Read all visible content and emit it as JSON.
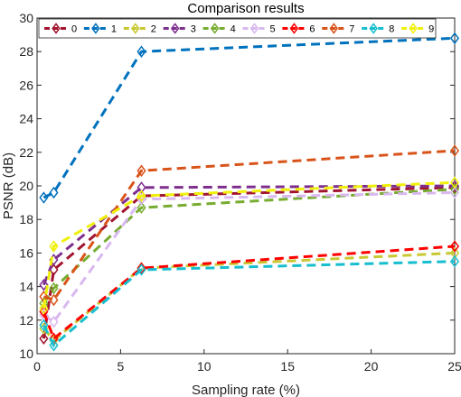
{
  "chart_data": {
    "type": "line",
    "title": "Comparison results",
    "xlabel": "Sampling rate (%)",
    "ylabel": "PSNR (dB)",
    "xlim": [
      0,
      25
    ],
    "ylim": [
      10,
      30
    ],
    "xticks": [
      0,
      5,
      10,
      15,
      20,
      25
    ],
    "yticks": [
      10,
      12,
      14,
      16,
      18,
      20,
      22,
      24,
      26,
      28,
      30
    ],
    "grid": false,
    "legend_position": "top",
    "x": [
      0.4,
      1,
      6.25,
      25
    ],
    "series": [
      {
        "name": "0",
        "color": "#A2142F",
        "values": [
          10.9,
          15.0,
          19.4,
          19.9
        ]
      },
      {
        "name": "1",
        "color": "#0072BD",
        "values": [
          19.3,
          19.6,
          28.0,
          28.8
        ]
      },
      {
        "name": "2",
        "color": "#C8C832",
        "values": [
          11.5,
          10.8,
          15.1,
          16.0
        ]
      },
      {
        "name": "3",
        "color": "#7E2F8E",
        "values": [
          14.1,
          15.6,
          19.9,
          20.0
        ]
      },
      {
        "name": "4",
        "color": "#77AC30",
        "values": [
          13.0,
          13.9,
          18.7,
          19.8
        ]
      },
      {
        "name": "5",
        "color": "#D9B8F0",
        "values": [
          12.3,
          11.9,
          19.2,
          19.6
        ]
      },
      {
        "name": "6",
        "color": "#FF0000",
        "values": [
          12.5,
          10.9,
          15.1,
          16.4
        ]
      },
      {
        "name": "7",
        "color": "#D95319",
        "values": [
          13.4,
          13.2,
          20.9,
          22.1
        ]
      },
      {
        "name": "8",
        "color": "#17BECF",
        "values": [
          11.7,
          10.5,
          15.0,
          15.5
        ]
      },
      {
        "name": "9",
        "color": "#F0F00A",
        "values": [
          12.7,
          16.4,
          19.4,
          20.2
        ]
      }
    ]
  }
}
